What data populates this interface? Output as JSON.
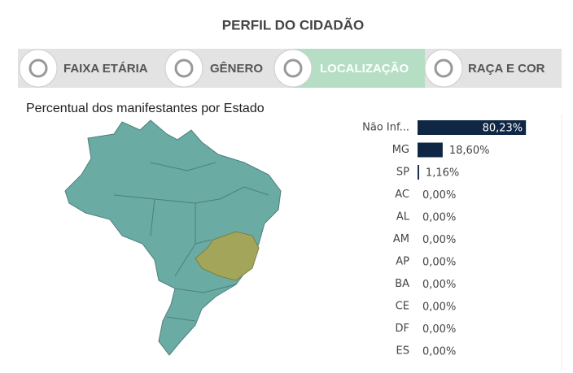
{
  "header": {
    "title": "PERFIL DO CIDADÃO"
  },
  "tabs": [
    "FAIXA ETÁRIA",
    "GÊNERO",
    "LOCALIZAÇÃO",
    "RAÇA E COR"
  ],
  "active_tab": 2,
  "map": {
    "title": "Percentual dos manifestantes por Estado"
  },
  "chart_data": {
    "type": "bar",
    "orientation": "horizontal",
    "categories": [
      "Não Inf...",
      "MG",
      "SP",
      "AC",
      "AL",
      "AM",
      "AP",
      "BA",
      "CE",
      "DF",
      "ES"
    ],
    "values": [
      80.23,
      18.6,
      1.16,
      0,
      0,
      0,
      0,
      0,
      0,
      0,
      0
    ],
    "value_labels": [
      "80,23%",
      "18,60%",
      "1,16%",
      "0,00%",
      "0,00%",
      "0,00%",
      "0,00%",
      "0,00%",
      "0,00%",
      "0,00%",
      "0,00%"
    ],
    "color": "#0f2744",
    "xlim": [
      0,
      100
    ]
  }
}
